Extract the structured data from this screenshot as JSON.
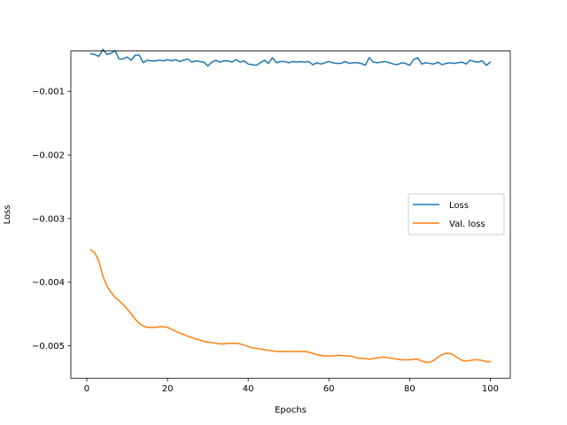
{
  "chart_data": {
    "type": "line",
    "title": "",
    "xlabel": "Epochs",
    "ylabel": "Loss",
    "xlim": [
      -3.95,
      104.95
    ],
    "ylim": [
      -0.00551,
      -0.000365
    ],
    "xticks": [
      0,
      20,
      40,
      60,
      80,
      100
    ],
    "xtick_labels": [
      "0",
      "20",
      "40",
      "60",
      "80",
      "100"
    ],
    "yticks": [
      -0.001,
      -0.002,
      -0.003,
      -0.004,
      -0.005
    ],
    "ytick_labels": [
      "−0.001",
      "−0.002",
      "−0.003",
      "−0.004",
      "−0.005"
    ],
    "legend": "center-right",
    "grid": false,
    "series": [
      {
        "name": "Loss",
        "color": "#1f77b4",
        "x": [
          1,
          2,
          3,
          4,
          5,
          6,
          7,
          8,
          9,
          10,
          11,
          12,
          13,
          14,
          15,
          16,
          17,
          18,
          19,
          20,
          21,
          22,
          23,
          24,
          25,
          26,
          27,
          28,
          29,
          30,
          31,
          32,
          33,
          34,
          35,
          36,
          37,
          38,
          39,
          40,
          41,
          42,
          43,
          44,
          45,
          46,
          47,
          48,
          49,
          50,
          51,
          52,
          53,
          54,
          55,
          56,
          57,
          58,
          59,
          60,
          61,
          62,
          63,
          64,
          65,
          66,
          67,
          68,
          69,
          70,
          71,
          72,
          73,
          74,
          75,
          76,
          77,
          78,
          79,
          80,
          81,
          82,
          83,
          84,
          85,
          86,
          87,
          88,
          89,
          90,
          91,
          92,
          93,
          94,
          95,
          96,
          97,
          98,
          99,
          100
        ],
        "y": [
          -0.00041,
          -0.00042,
          -0.00045,
          -0.00034,
          -0.00042,
          -0.0004,
          -0.00036,
          -0.00049,
          -0.00049,
          -0.00046,
          -0.00051,
          -0.00043,
          -0.00043,
          -0.00055,
          -0.00051,
          -0.00052,
          -0.00052,
          -0.00051,
          -0.00052,
          -0.0005,
          -0.00052,
          -0.0005,
          -0.00053,
          -0.00051,
          -0.00049,
          -0.00054,
          -0.00052,
          -0.00053,
          -0.00054,
          -0.0006,
          -0.00054,
          -0.00051,
          -0.00054,
          -0.00052,
          -0.00052,
          -0.00054,
          -0.0005,
          -0.00054,
          -0.00052,
          -0.00057,
          -0.00058,
          -0.00059,
          -0.00055,
          -0.00051,
          -0.00056,
          -0.00047,
          -0.00055,
          -0.00053,
          -0.00053,
          -0.00055,
          -0.00053,
          -0.00054,
          -0.00053,
          -0.00054,
          -0.00053,
          -0.00058,
          -0.00055,
          -0.00057,
          -0.00055,
          -0.00053,
          -0.00055,
          -0.00056,
          -0.00056,
          -0.00053,
          -0.00056,
          -0.00055,
          -0.00055,
          -0.00056,
          -0.00059,
          -0.00047,
          -0.00054,
          -0.00055,
          -0.00054,
          -0.00053,
          -0.00055,
          -0.00057,
          -0.00058,
          -0.00055,
          -0.00056,
          -0.00059,
          -0.0005,
          -0.00047,
          -0.00057,
          -0.00055,
          -0.00056,
          -0.00057,
          -0.00054,
          -0.00058,
          -0.00056,
          -0.00055,
          -0.00056,
          -0.00055,
          -0.00054,
          -0.00057,
          -0.00051,
          -0.00053,
          -0.00054,
          -0.00052,
          -0.00059,
          -0.00054
        ]
      },
      {
        "name": "Val. loss",
        "color": "#ff7f0e",
        "x": [
          1,
          2,
          3,
          4,
          5,
          6,
          7,
          8,
          9,
          10,
          11,
          12,
          13,
          14,
          15,
          16,
          17,
          18,
          19,
          20,
          21,
          22,
          23,
          24,
          25,
          26,
          27,
          28,
          29,
          30,
          31,
          32,
          33,
          34,
          35,
          36,
          37,
          38,
          39,
          40,
          41,
          42,
          43,
          44,
          45,
          46,
          47,
          48,
          49,
          50,
          51,
          52,
          53,
          54,
          55,
          56,
          57,
          58,
          59,
          60,
          61,
          62,
          63,
          64,
          65,
          66,
          67,
          68,
          69,
          70,
          71,
          72,
          73,
          74,
          75,
          76,
          77,
          78,
          79,
          80,
          81,
          82,
          83,
          84,
          85,
          86,
          87,
          88,
          89,
          90,
          91,
          92,
          93,
          94,
          95,
          96,
          97,
          98,
          99,
          100
        ],
        "y": [
          -0.00349,
          -0.00354,
          -0.00367,
          -0.00391,
          -0.00406,
          -0.00416,
          -0.00424,
          -0.00429,
          -0.00435,
          -0.00442,
          -0.0045,
          -0.00458,
          -0.00465,
          -0.00469,
          -0.00471,
          -0.00471,
          -0.00471,
          -0.0047,
          -0.0047,
          -0.00471,
          -0.00474,
          -0.00477,
          -0.0048,
          -0.00482,
          -0.00485,
          -0.00487,
          -0.00489,
          -0.00491,
          -0.00493,
          -0.00494,
          -0.00495,
          -0.00496,
          -0.00497,
          -0.00497,
          -0.00496,
          -0.00496,
          -0.00496,
          -0.00497,
          -0.00499,
          -0.00501,
          -0.00503,
          -0.00504,
          -0.00505,
          -0.00506,
          -0.00507,
          -0.00508,
          -0.00509,
          -0.00509,
          -0.00509,
          -0.00509,
          -0.00509,
          -0.00509,
          -0.00509,
          -0.00509,
          -0.0051,
          -0.00512,
          -0.00514,
          -0.00515,
          -0.00516,
          -0.00516,
          -0.00516,
          -0.00515,
          -0.00515,
          -0.00516,
          -0.00516,
          -0.00517,
          -0.00519,
          -0.0052,
          -0.0052,
          -0.00521,
          -0.0052,
          -0.00519,
          -0.00518,
          -0.00518,
          -0.00519,
          -0.0052,
          -0.00521,
          -0.00522,
          -0.00522,
          -0.00522,
          -0.00521,
          -0.00521,
          -0.00524,
          -0.00526,
          -0.00526,
          -0.00523,
          -0.00518,
          -0.00514,
          -0.00512,
          -0.00512,
          -0.00515,
          -0.00519,
          -0.00523,
          -0.00524,
          -0.00523,
          -0.00522,
          -0.00522,
          -0.00523,
          -0.00525,
          -0.00525
        ]
      }
    ]
  }
}
